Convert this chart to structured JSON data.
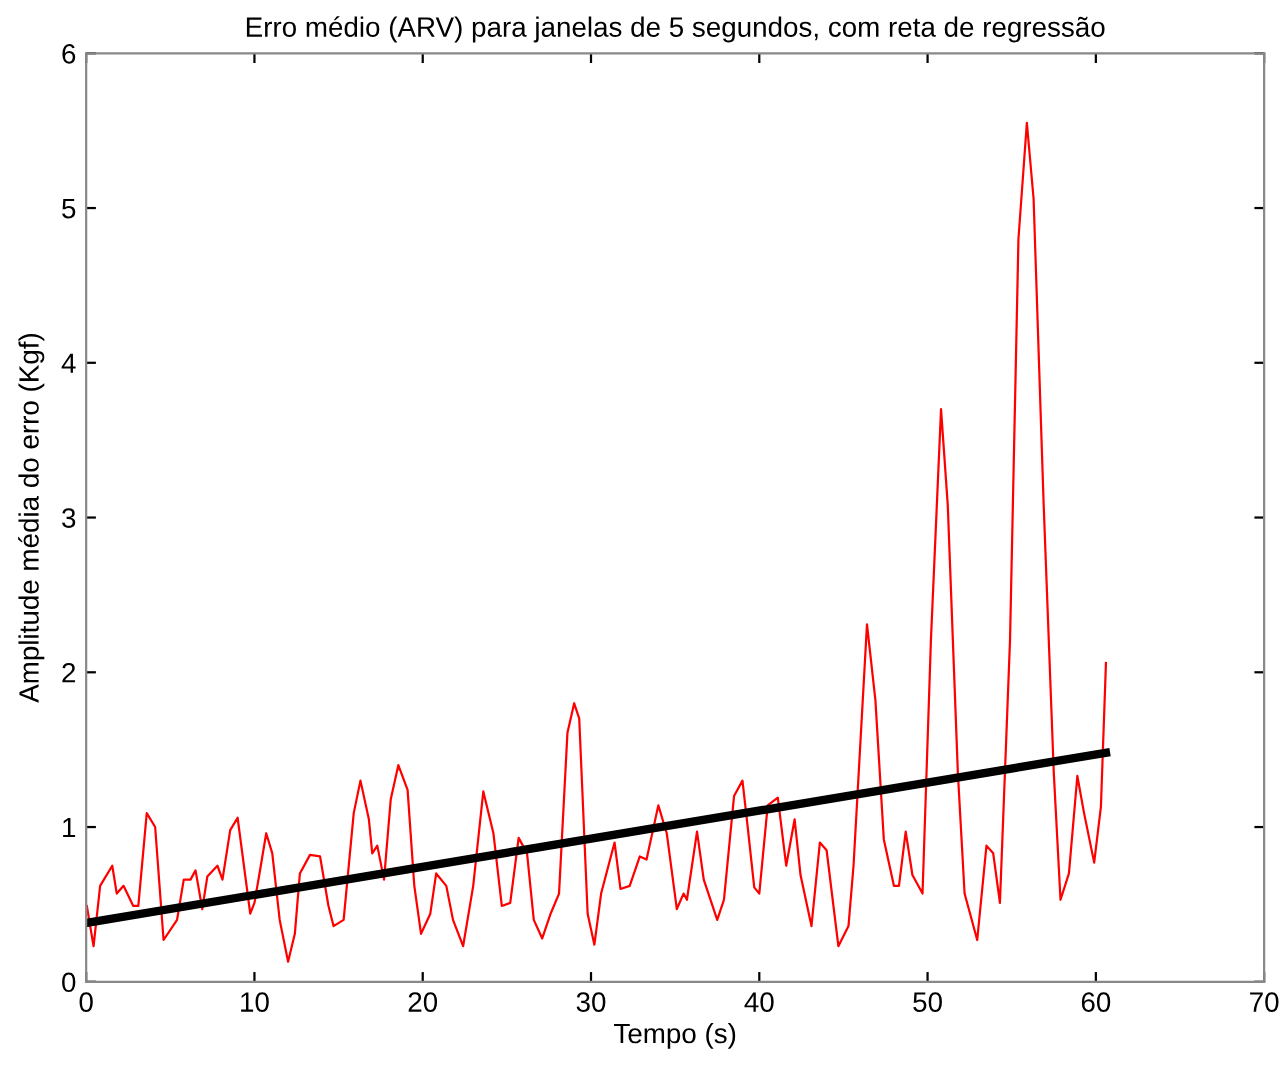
{
  "chart_data": {
    "type": "line",
    "title": "Erro médio (ARV) para janelas de 5 segundos, com reta de regressão",
    "xlabel": "Tempo (s)",
    "ylabel": "Amplitude média do erro (Kgf)",
    "xlim": [
      0,
      70
    ],
    "xticks": [
      0,
      10,
      20,
      30,
      40,
      50,
      60,
      70
    ],
    "ylim": [
      0,
      6
    ],
    "yticks": [
      0,
      1,
      2,
      3,
      4,
      5,
      6
    ],
    "grid": false,
    "legend": false,
    "marker": "none",
    "line_style": "solid",
    "series": [
      {
        "color": "#ff0000",
        "x": [
          0.04,
          0.44,
          0.83,
          1.55,
          1.82,
          2.22,
          2.8,
          3.1,
          3.6,
          4.1,
          4.6,
          5.4,
          5.8,
          6.2,
          6.5,
          6.9,
          7.2,
          7.8,
          8.1,
          8.56,
          9.0,
          9.75,
          10.0,
          10.3,
          10.7,
          11.06,
          11.5,
          12.0,
          12.4,
          12.7,
          13.3,
          13.9,
          14.4,
          14.7,
          15.3,
          15.9,
          16.3,
          16.8,
          17.0,
          17.3,
          17.7,
          18.1,
          18.55,
          19.1,
          19.5,
          19.9,
          20.45,
          20.8,
          21.4,
          21.8,
          22.4,
          23.0,
          23.6,
          24.2,
          24.7,
          25.2,
          25.7,
          26.2,
          26.6,
          27.1,
          27.6,
          28.1,
          28.6,
          29.0,
          29.3,
          29.8,
          30.2,
          30.6,
          31.4,
          31.75,
          32.3,
          32.9,
          33.3,
          34.0,
          34.5,
          35.1,
          35.5,
          35.7,
          36.3,
          36.7,
          37.5,
          37.9,
          38.5,
          39.0,
          39.3,
          39.7,
          40.0,
          40.5,
          41.1,
          41.6,
          42.1,
          42.45,
          43.1,
          43.6,
          44.0,
          44.7,
          45.3,
          45.6,
          46.4,
          46.9,
          47.4,
          48.0,
          48.3,
          48.7,
          49.1,
          49.7,
          50.2,
          50.8,
          51.2,
          51.8,
          52.2,
          52.95,
          53.5,
          53.9,
          54.3,
          54.9,
          55.4,
          55.9,
          56.3,
          56.9,
          57.5,
          57.9,
          58.4,
          58.9,
          59.3,
          59.9,
          60.3,
          60.6
        ],
        "values": [
          0.49,
          0.23,
          0.62,
          0.75,
          0.57,
          0.62,
          0.49,
          0.49,
          1.09,
          1.0,
          0.27,
          0.4,
          0.66,
          0.66,
          0.72,
          0.47,
          0.68,
          0.75,
          0.66,
          0.98,
          1.06,
          0.44,
          0.51,
          0.7,
          0.96,
          0.83,
          0.4,
          0.13,
          0.31,
          0.7,
          0.82,
          0.81,
          0.49,
          0.36,
          0.4,
          1.09,
          1.3,
          1.05,
          0.83,
          0.88,
          0.66,
          1.18,
          1.4,
          1.24,
          0.62,
          0.31,
          0.44,
          0.7,
          0.62,
          0.4,
          0.23,
          0.62,
          1.23,
          0.96,
          0.49,
          0.51,
          0.93,
          0.83,
          0.4,
          0.28,
          0.44,
          0.57,
          1.61,
          1.8,
          1.7,
          0.44,
          0.24,
          0.57,
          0.9,
          0.6,
          0.62,
          0.81,
          0.79,
          1.14,
          0.96,
          0.47,
          0.57,
          0.53,
          0.97,
          0.66,
          0.4,
          0.53,
          1.2,
          1.3,
          1.01,
          0.61,
          0.57,
          1.14,
          1.19,
          0.75,
          1.05,
          0.69,
          0.36,
          0.9,
          0.85,
          0.23,
          0.36,
          0.75,
          2.31,
          1.82,
          0.92,
          0.62,
          0.62,
          0.97,
          0.69,
          0.57,
          2.21,
          3.7,
          3.08,
          1.35,
          0.57,
          0.27,
          0.88,
          0.83,
          0.51,
          2.21,
          4.8,
          5.55,
          5.06,
          3.08,
          1.35,
          0.53,
          0.7,
          1.33,
          1.09,
          0.77,
          1.13,
          2.06
        ]
      },
      {
        "color": "#000000",
        "x": [
          0,
          60.6
        ],
        "values": [
          0.38,
          1.48
        ]
      }
    ]
  }
}
